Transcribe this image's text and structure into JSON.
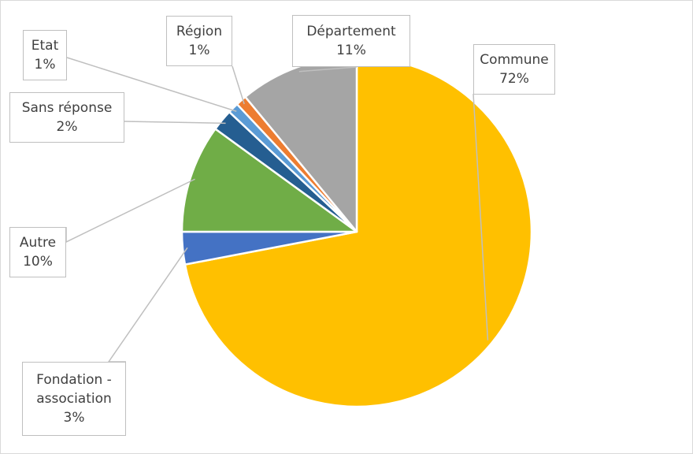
{
  "chart_data": {
    "type": "pie",
    "title": "",
    "start_angle_deg": 0,
    "direction": "clockwise",
    "slices": [
      {
        "label": "Commune",
        "label_lines": [
          "Commune"
        ],
        "value": 72,
        "value_label": "72%",
        "color": "#FFC000"
      },
      {
        "label": "Fondation - association",
        "label_lines": [
          "Fondation -",
          "association"
        ],
        "value": 3,
        "value_label": "3%",
        "color": "#4472C4"
      },
      {
        "label": "Autre",
        "label_lines": [
          "Autre"
        ],
        "value": 10,
        "value_label": "10%",
        "color": "#70AD47"
      },
      {
        "label": "Sans réponse",
        "label_lines": [
          "Sans réponse"
        ],
        "value": 2,
        "value_label": "2%",
        "color": "#255E91"
      },
      {
        "label": "Etat",
        "label_lines": [
          "Etat"
        ],
        "value": 1,
        "value_label": "1%",
        "color": "#5B9BD5"
      },
      {
        "label": "Région",
        "label_lines": [
          "Région"
        ],
        "value": 1,
        "value_label": "1%",
        "color": "#ED7D31"
      },
      {
        "label": "Département",
        "label_lines": [
          "Département"
        ],
        "value": 11,
        "value_label": "11%",
        "color": "#A5A5A5"
      }
    ],
    "label_style": "callouts with leader lines"
  }
}
